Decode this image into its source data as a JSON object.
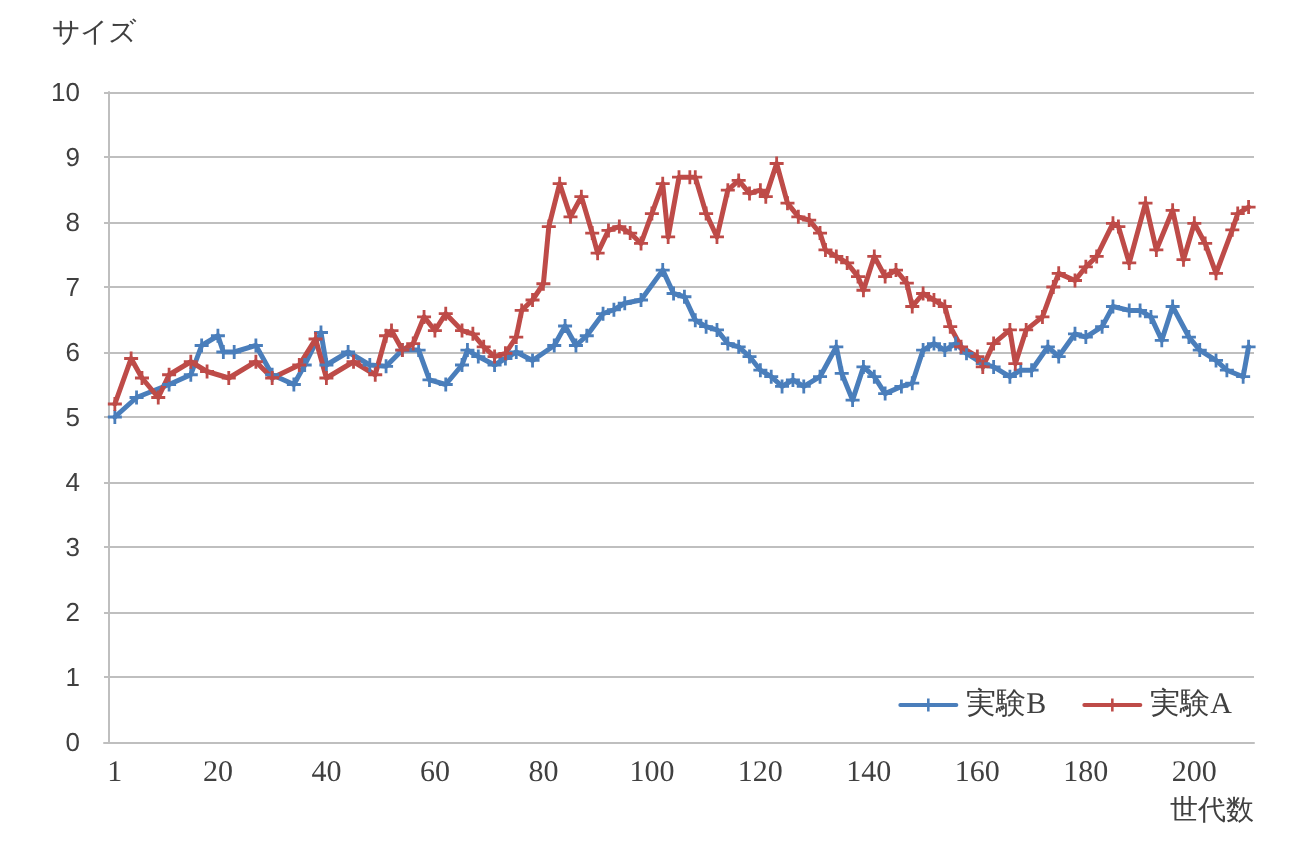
{
  "chart_data": {
    "type": "line",
    "xlabel": "世代数",
    "ylabel": "サイズ",
    "xlim": [
      -1,
      211
    ],
    "xticks": [
      1,
      20,
      40,
      60,
      80,
      100,
      120,
      140,
      160,
      180,
      200
    ],
    "ylim": [
      0,
      10
    ],
    "yticks": [
      0,
      1,
      2,
      3,
      4,
      5,
      6,
      7,
      8,
      9,
      10
    ],
    "grid": "y",
    "legend": "bottom right",
    "marker": "cross",
    "line_style": "solid",
    "series": [
      {
        "name": "実験B",
        "color": "#4a7ebb",
        "x": [
          1,
          5,
          11,
          15,
          17,
          20,
          21,
          23,
          27,
          30,
          34,
          36,
          39,
          40,
          44,
          48,
          51,
          54,
          57,
          59,
          62,
          65,
          66,
          68,
          71,
          73,
          75,
          78,
          82,
          84,
          86,
          88,
          91,
          93,
          95,
          98,
          102,
          104,
          106,
          108,
          110,
          112,
          114,
          116,
          118,
          120,
          122,
          124,
          126,
          128,
          131,
          134,
          135,
          137,
          139,
          141,
          143,
          146,
          148,
          150,
          152,
          154,
          156,
          158,
          161,
          163,
          166,
          168,
          170,
          173,
          175,
          178,
          180,
          183,
          185,
          188,
          190,
          192,
          194,
          196,
          199,
          201,
          204,
          206,
          209,
          210
        ],
        "values": [
          5.0,
          5.3,
          5.5,
          5.65,
          6.1,
          6.25,
          6.0,
          6.0,
          6.1,
          5.65,
          5.5,
          5.8,
          6.3,
          5.8,
          6.0,
          5.8,
          5.78,
          6.03,
          6.03,
          5.57,
          5.5,
          5.8,
          6.03,
          5.93,
          5.8,
          5.9,
          6.0,
          5.87,
          6.1,
          6.4,
          6.1,
          6.25,
          6.59,
          6.65,
          6.75,
          6.8,
          7.26,
          6.9,
          6.85,
          6.49,
          6.39,
          6.34,
          6.13,
          6.08,
          5.93,
          5.72,
          5.62,
          5.47,
          5.57,
          5.47,
          5.62,
          6.08,
          5.67,
          5.26,
          5.77,
          5.62,
          5.36,
          5.47,
          5.52,
          6.03,
          6.13,
          6.03,
          6.13,
          5.98,
          5.82,
          5.77,
          5.62,
          5.72,
          5.72,
          6.08,
          5.93,
          6.28,
          6.23,
          6.39,
          6.7,
          6.64,
          6.64,
          6.54,
          6.18,
          6.7,
          6.23,
          6.03,
          5.87,
          5.72,
          5.62,
          6.08
        ]
      },
      {
        "name": "実験A",
        "color": "#be4b48",
        "x": [
          1,
          4,
          6,
          9,
          11,
          15,
          18,
          22,
          27,
          30,
          35,
          38,
          40,
          45,
          49,
          51,
          52,
          54,
          56,
          58,
          60,
          62,
          65,
          67,
          69,
          71,
          73,
          75,
          76,
          78,
          80,
          81,
          83,
          85,
          87,
          89,
          90,
          92,
          94,
          96,
          98,
          100,
          102,
          103,
          105,
          107,
          108,
          110,
          112,
          114,
          116,
          118,
          120,
          121,
          123,
          125,
          127,
          129,
          131,
          132,
          134,
          136,
          138,
          139,
          141,
          143,
          145,
          147,
          148,
          150,
          152,
          154,
          155,
          157,
          160,
          161,
          163,
          166,
          167,
          169,
          172,
          174,
          175,
          178,
          180,
          182,
          185,
          186,
          188,
          191,
          193,
          196,
          198,
          200,
          202,
          204,
          207,
          208,
          210
        ],
        "values": [
          5.2,
          5.9,
          5.6,
          5.3,
          5.65,
          5.85,
          5.7,
          5.6,
          5.85,
          5.6,
          5.8,
          6.2,
          5.6,
          5.85,
          5.65,
          6.25,
          6.33,
          6.03,
          6.13,
          6.54,
          6.33,
          6.59,
          6.33,
          6.28,
          6.08,
          5.93,
          5.98,
          6.23,
          6.64,
          6.8,
          7.05,
          7.93,
          8.59,
          8.08,
          8.39,
          7.83,
          7.52,
          7.87,
          7.93,
          7.83,
          7.67,
          8.13,
          8.59,
          7.77,
          8.69,
          8.69,
          8.69,
          8.13,
          7.77,
          8.49,
          8.64,
          8.44,
          8.49,
          8.39,
          8.9,
          8.29,
          8.08,
          8.03,
          7.83,
          7.57,
          7.47,
          7.37,
          7.16,
          6.95,
          7.47,
          7.16,
          7.26,
          7.06,
          6.7,
          6.9,
          6.8,
          6.7,
          6.39,
          6.08,
          5.93,
          5.77,
          6.13,
          6.34,
          5.82,
          6.34,
          6.54,
          7.0,
          7.21,
          7.1,
          7.31,
          7.47,
          7.98,
          7.93,
          7.37,
          8.29,
          7.57,
          8.18,
          7.42,
          7.98,
          7.67,
          7.21,
          7.88,
          8.13,
          8.23
        ]
      }
    ]
  }
}
